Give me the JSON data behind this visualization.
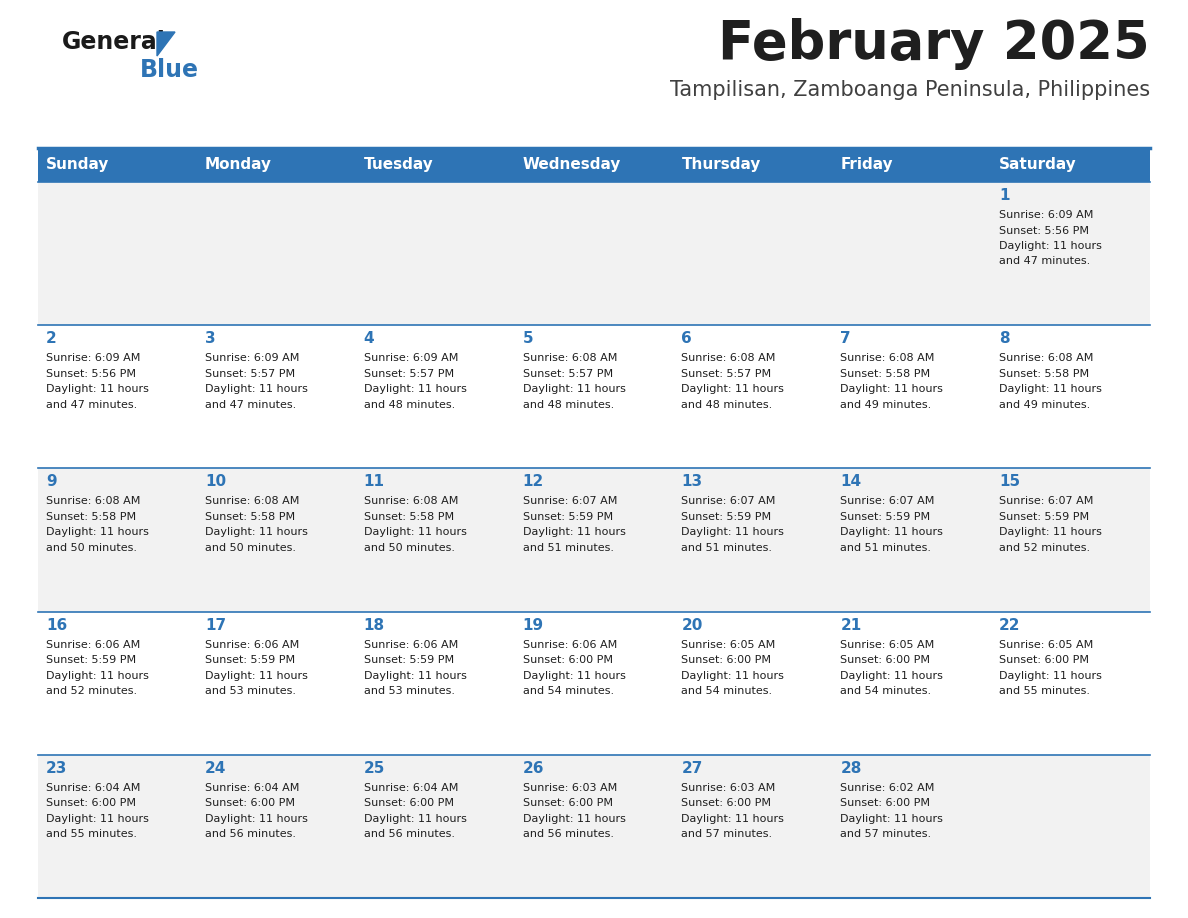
{
  "title": "February 2025",
  "subtitle": "Tampilisan, Zamboanga Peninsula, Philippines",
  "header_bg_color": "#2E74B5",
  "header_text_color": "#FFFFFF",
  "cell_bg_color": "#FFFFFF",
  "alt_cell_bg_color": "#F2F2F2",
  "border_color": "#2E74B5",
  "day_headers": [
    "Sunday",
    "Monday",
    "Tuesday",
    "Wednesday",
    "Thursday",
    "Friday",
    "Saturday"
  ],
  "title_color": "#1F1F1F",
  "subtitle_color": "#404040",
  "day_number_color": "#2E74B5",
  "cell_text_color": "#1F1F1F",
  "calendar_data": [
    [
      {
        "day": null,
        "sunrise": null,
        "sunset": null,
        "daylight": null
      },
      {
        "day": null,
        "sunrise": null,
        "sunset": null,
        "daylight": null
      },
      {
        "day": null,
        "sunrise": null,
        "sunset": null,
        "daylight": null
      },
      {
        "day": null,
        "sunrise": null,
        "sunset": null,
        "daylight": null
      },
      {
        "day": null,
        "sunrise": null,
        "sunset": null,
        "daylight": null
      },
      {
        "day": null,
        "sunrise": null,
        "sunset": null,
        "daylight": null
      },
      {
        "day": 1,
        "sunrise": "6:09 AM",
        "sunset": "5:56 PM",
        "daylight": "11 hours and 47 minutes."
      }
    ],
    [
      {
        "day": 2,
        "sunrise": "6:09 AM",
        "sunset": "5:56 PM",
        "daylight": "11 hours and 47 minutes."
      },
      {
        "day": 3,
        "sunrise": "6:09 AM",
        "sunset": "5:57 PM",
        "daylight": "11 hours and 47 minutes."
      },
      {
        "day": 4,
        "sunrise": "6:09 AM",
        "sunset": "5:57 PM",
        "daylight": "11 hours and 48 minutes."
      },
      {
        "day": 5,
        "sunrise": "6:08 AM",
        "sunset": "5:57 PM",
        "daylight": "11 hours and 48 minutes."
      },
      {
        "day": 6,
        "sunrise": "6:08 AM",
        "sunset": "5:57 PM",
        "daylight": "11 hours and 48 minutes."
      },
      {
        "day": 7,
        "sunrise": "6:08 AM",
        "sunset": "5:58 PM",
        "daylight": "11 hours and 49 minutes."
      },
      {
        "day": 8,
        "sunrise": "6:08 AM",
        "sunset": "5:58 PM",
        "daylight": "11 hours and 49 minutes."
      }
    ],
    [
      {
        "day": 9,
        "sunrise": "6:08 AM",
        "sunset": "5:58 PM",
        "daylight": "11 hours and 50 minutes."
      },
      {
        "day": 10,
        "sunrise": "6:08 AM",
        "sunset": "5:58 PM",
        "daylight": "11 hours and 50 minutes."
      },
      {
        "day": 11,
        "sunrise": "6:08 AM",
        "sunset": "5:58 PM",
        "daylight": "11 hours and 50 minutes."
      },
      {
        "day": 12,
        "sunrise": "6:07 AM",
        "sunset": "5:59 PM",
        "daylight": "11 hours and 51 minutes."
      },
      {
        "day": 13,
        "sunrise": "6:07 AM",
        "sunset": "5:59 PM",
        "daylight": "11 hours and 51 minutes."
      },
      {
        "day": 14,
        "sunrise": "6:07 AM",
        "sunset": "5:59 PM",
        "daylight": "11 hours and 51 minutes."
      },
      {
        "day": 15,
        "sunrise": "6:07 AM",
        "sunset": "5:59 PM",
        "daylight": "11 hours and 52 minutes."
      }
    ],
    [
      {
        "day": 16,
        "sunrise": "6:06 AM",
        "sunset": "5:59 PM",
        "daylight": "11 hours and 52 minutes."
      },
      {
        "day": 17,
        "sunrise": "6:06 AM",
        "sunset": "5:59 PM",
        "daylight": "11 hours and 53 minutes."
      },
      {
        "day": 18,
        "sunrise": "6:06 AM",
        "sunset": "5:59 PM",
        "daylight": "11 hours and 53 minutes."
      },
      {
        "day": 19,
        "sunrise": "6:06 AM",
        "sunset": "6:00 PM",
        "daylight": "11 hours and 54 minutes."
      },
      {
        "day": 20,
        "sunrise": "6:05 AM",
        "sunset": "6:00 PM",
        "daylight": "11 hours and 54 minutes."
      },
      {
        "day": 21,
        "sunrise": "6:05 AM",
        "sunset": "6:00 PM",
        "daylight": "11 hours and 54 minutes."
      },
      {
        "day": 22,
        "sunrise": "6:05 AM",
        "sunset": "6:00 PM",
        "daylight": "11 hours and 55 minutes."
      }
    ],
    [
      {
        "day": 23,
        "sunrise": "6:04 AM",
        "sunset": "6:00 PM",
        "daylight": "11 hours and 55 minutes."
      },
      {
        "day": 24,
        "sunrise": "6:04 AM",
        "sunset": "6:00 PM",
        "daylight": "11 hours and 56 minutes."
      },
      {
        "day": 25,
        "sunrise": "6:04 AM",
        "sunset": "6:00 PM",
        "daylight": "11 hours and 56 minutes."
      },
      {
        "day": 26,
        "sunrise": "6:03 AM",
        "sunset": "6:00 PM",
        "daylight": "11 hours and 56 minutes."
      },
      {
        "day": 27,
        "sunrise": "6:03 AM",
        "sunset": "6:00 PM",
        "daylight": "11 hours and 57 minutes."
      },
      {
        "day": 28,
        "sunrise": "6:02 AM",
        "sunset": "6:00 PM",
        "daylight": "11 hours and 57 minutes."
      },
      {
        "day": null,
        "sunrise": null,
        "sunset": null,
        "daylight": null
      }
    ]
  ],
  "logo_color_general": "#1A1A1A",
  "logo_color_blue": "#2E74B5",
  "title_fontsize": 38,
  "subtitle_fontsize": 15,
  "header_fontsize": 11,
  "day_num_fontsize": 11,
  "cell_text_fontsize": 8.0
}
